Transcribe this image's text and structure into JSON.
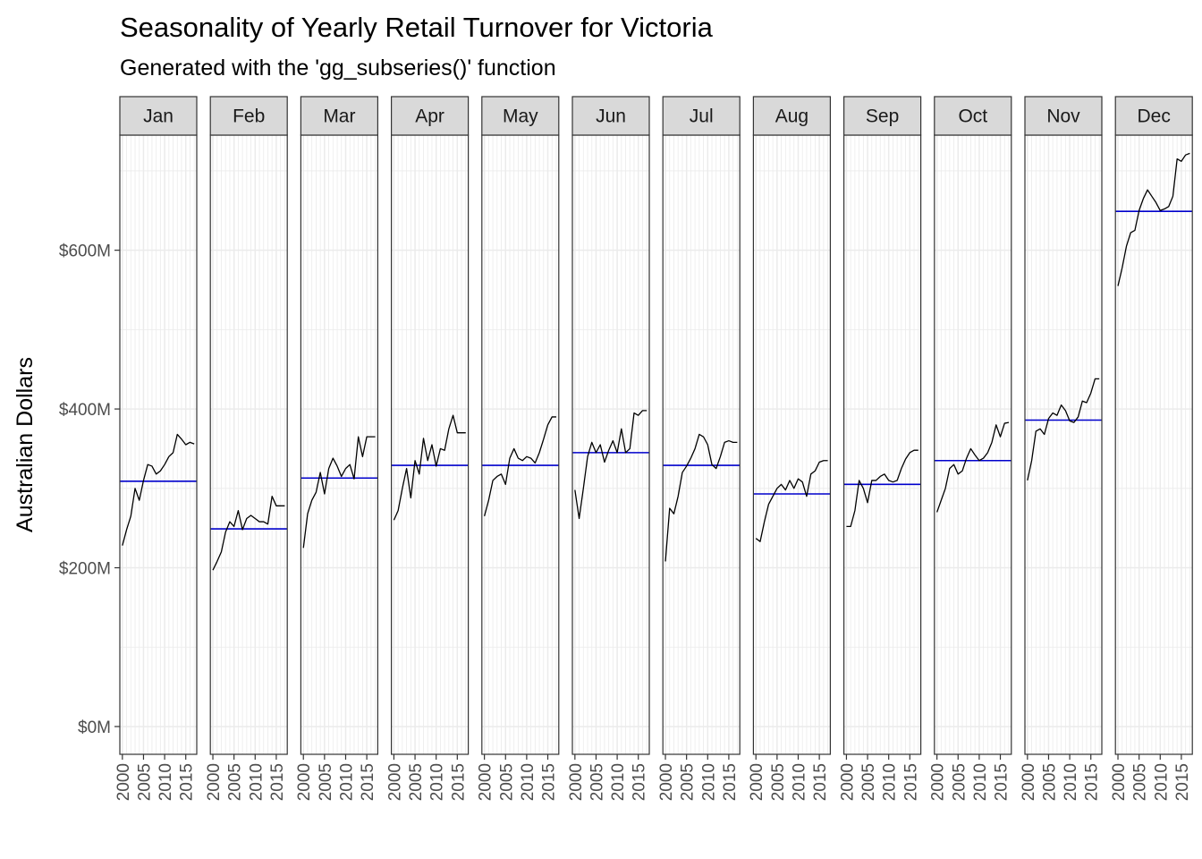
{
  "chart_data": {
    "type": "line",
    "title": "Seasonality of Yearly Retail Turnover for Victoria",
    "subtitle": "Generated with the 'gg_subseries()' function",
    "ylabel": "Australian Dollars",
    "xlabel": "",
    "ylim": [
      -35,
      745
    ],
    "xlim": [
      1999.4,
      2017.6
    ],
    "y_ticks": [
      0,
      200,
      400,
      600
    ],
    "y_tick_labels": [
      "$0M",
      "$200M",
      "$400M",
      "$600M"
    ],
    "x_ticks": [
      2000,
      2005,
      2010,
      2015
    ],
    "x_tick_labels": [
      "2000",
      "2005",
      "2010",
      "2015"
    ],
    "grid": true,
    "legend": "none",
    "colors": {
      "line": "#000000",
      "mean_line": "#0000cc",
      "strip_fill": "#d9d9d9",
      "grid": "#ebebeb",
      "border": "#333333"
    },
    "x": [
      2000,
      2001,
      2002,
      2003,
      2004,
      2005,
      2006,
      2007,
      2008,
      2009,
      2010,
      2011,
      2012,
      2013,
      2014,
      2015,
      2016,
      2017
    ],
    "facets": [
      {
        "label": "Jan",
        "mean": 309,
        "values": [
          228,
          248,
          265,
          300,
          285,
          310,
          330,
          328,
          318,
          322,
          330,
          340,
          345,
          368,
          362,
          355,
          358,
          356
        ]
      },
      {
        "label": "Feb",
        "mean": 249,
        "values": [
          197,
          208,
          220,
          245,
          258,
          252,
          272,
          248,
          262,
          266,
          262,
          258,
          258,
          255,
          290,
          278,
          278,
          278
        ]
      },
      {
        "label": "Mar",
        "mean": 313,
        "values": [
          225,
          268,
          285,
          295,
          320,
          293,
          325,
          338,
          328,
          315,
          325,
          330,
          312,
          365,
          340,
          365,
          365,
          365
        ]
      },
      {
        "label": "Apr",
        "mean": 329,
        "values": [
          260,
          272,
          300,
          325,
          288,
          335,
          318,
          363,
          335,
          355,
          328,
          350,
          348,
          375,
          392,
          370,
          370,
          370
        ]
      },
      {
        "label": "May",
        "mean": 329,
        "values": [
          265,
          285,
          310,
          315,
          318,
          305,
          338,
          350,
          338,
          335,
          340,
          338,
          332,
          345,
          362,
          380,
          390,
          390
        ]
      },
      {
        "label": "Jun",
        "mean": 345,
        "values": [
          298,
          262,
          300,
          340,
          358,
          345,
          355,
          333,
          348,
          360,
          345,
          375,
          345,
          350,
          395,
          392,
          398,
          398
        ]
      },
      {
        "label": "Jul",
        "mean": 329,
        "values": [
          208,
          275,
          268,
          290,
          320,
          328,
          338,
          350,
          368,
          365,
          355,
          330,
          325,
          340,
          358,
          360,
          358,
          358
        ]
      },
      {
        "label": "Aug",
        "mean": 293,
        "values": [
          237,
          233,
          258,
          280,
          290,
          300,
          305,
          298,
          310,
          300,
          312,
          308,
          290,
          318,
          322,
          333,
          335,
          335
        ]
      },
      {
        "label": "Sep",
        "mean": 305,
        "values": [
          252,
          252,
          272,
          310,
          300,
          282,
          310,
          310,
          315,
          318,
          310,
          308,
          310,
          325,
          337,
          345,
          348,
          348
        ]
      },
      {
        "label": "Oct",
        "mean": 335,
        "values": [
          270,
          285,
          300,
          325,
          330,
          318,
          322,
          338,
          350,
          342,
          335,
          338,
          345,
          358,
          380,
          365,
          382,
          383
        ]
      },
      {
        "label": "Nov",
        "mean": 386,
        "values": [
          310,
          335,
          372,
          375,
          368,
          388,
          395,
          392,
          405,
          398,
          385,
          383,
          390,
          410,
          408,
          420,
          438,
          438
        ]
      },
      {
        "label": "Dec",
        "mean": 649,
        "values": [
          555,
          578,
          605,
          622,
          625,
          650,
          665,
          676,
          668,
          660,
          650,
          652,
          655,
          668,
          715,
          712,
          720,
          722
        ]
      }
    ]
  }
}
